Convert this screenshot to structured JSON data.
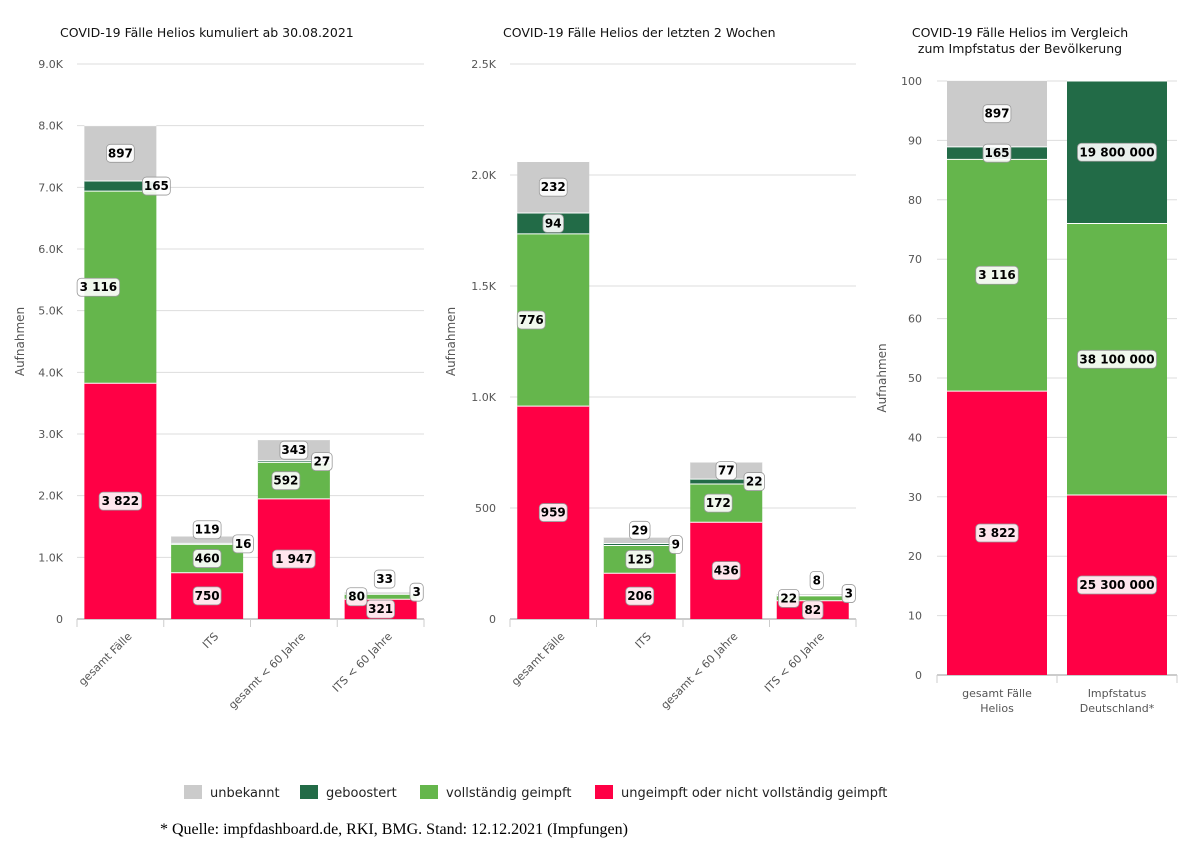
{
  "colors": {
    "unbekannt": "#cbcbcb",
    "geboostert": "#226b47",
    "geimpft": "#65b64c",
    "ungeimpft": "#ff0045"
  },
  "legend": [
    {
      "key": "unbekannt",
      "label": "unbekannt"
    },
    {
      "key": "geboostert",
      "label": "geboostert"
    },
    {
      "key": "geimpft",
      "label": "vollständig geimpft"
    },
    {
      "key": "ungeimpft",
      "label": "ungeimpft oder nicht vollständig geimpft"
    }
  ],
  "source": "* Quelle: impfdashboard.de, RKI, BMG. Stand: 12.12.2021 (Impfungen)",
  "chart_data": [
    {
      "type": "bar",
      "stacked": true,
      "title": "COVID-19 Fälle Helios kumuliert ab 30.08.2021",
      "ylabel": "Aufnahmen",
      "ylim": [
        0,
        9000
      ],
      "yticks": [
        {
          "v": 0,
          "label": "0"
        },
        {
          "v": 1000,
          "label": "1.0K"
        },
        {
          "v": 2000,
          "label": "2.0K"
        },
        {
          "v": 3000,
          "label": "3.0K"
        },
        {
          "v": 4000,
          "label": "4.0K"
        },
        {
          "v": 5000,
          "label": "5.0K"
        },
        {
          "v": 6000,
          "label": "6.0K"
        },
        {
          "v": 7000,
          "label": "7.0K"
        },
        {
          "v": 8000,
          "label": "8.0K"
        },
        {
          "v": 9000,
          "label": "9.0K"
        }
      ],
      "categories": [
        "gesamt Fälle",
        "ITS",
        "gesamt < 60 Jahre",
        "ITS < 60 Jahre"
      ],
      "series": [
        {
          "key": "ungeimpft",
          "name": "ungeimpft oder nicht vollständig geimpft",
          "values": [
            3822,
            750,
            1947,
            321
          ],
          "labels": [
            "3 822",
            "750",
            "1 947",
            "321"
          ]
        },
        {
          "key": "geimpft",
          "name": "vollständig geimpft",
          "values": [
            3116,
            460,
            592,
            80
          ],
          "labels": [
            "3 116",
            "460",
            "592",
            "80"
          ]
        },
        {
          "key": "geboostert",
          "name": "geboostert",
          "values": [
            165,
            16,
            27,
            3
          ],
          "labels": [
            "165",
            "16",
            "27",
            "3"
          ]
        },
        {
          "key": "unbekannt",
          "name": "unbekannt",
          "values": [
            897,
            119,
            343,
            33
          ],
          "labels": [
            "897",
            "119",
            "343",
            "33"
          ]
        }
      ]
    },
    {
      "type": "bar",
      "stacked": true,
      "title": "COVID-19 Fälle Helios der letzten 2 Wochen",
      "ylabel": "Aufnahmen",
      "ylim": [
        0,
        2500
      ],
      "yticks": [
        {
          "v": 0,
          "label": "0"
        },
        {
          "v": 500,
          "label": "500"
        },
        {
          "v": 1000,
          "label": "1.0K"
        },
        {
          "v": 1500,
          "label": "1.5K"
        },
        {
          "v": 2000,
          "label": "2.0K"
        },
        {
          "v": 2500,
          "label": "2.5K"
        }
      ],
      "categories": [
        "gesamt Fälle",
        "ITS",
        "gesamt < 60 Jahre",
        "ITS < 60 Jahre"
      ],
      "series": [
        {
          "key": "ungeimpft",
          "name": "ungeimpft oder nicht vollständig geimpft",
          "values": [
            959,
            206,
            436,
            82
          ],
          "labels": [
            "959",
            "206",
            "436",
            "82"
          ]
        },
        {
          "key": "geimpft",
          "name": "vollständig geimpft",
          "values": [
            776,
            125,
            172,
            22
          ],
          "labels": [
            "776",
            "125",
            "172",
            "22"
          ]
        },
        {
          "key": "geboostert",
          "name": "geboostert",
          "values": [
            94,
            9,
            22,
            3
          ],
          "labels": [
            "94",
            "9",
            "22",
            "3"
          ]
        },
        {
          "key": "unbekannt",
          "name": "unbekannt",
          "values": [
            232,
            29,
            77,
            8
          ],
          "labels": [
            "232",
            "29",
            "77",
            "8"
          ]
        }
      ]
    },
    {
      "type": "bar",
      "stacked": true,
      "percent": true,
      "title": [
        "COVID-19 Fälle Helios im Vergleich",
        "zum Impfstatus der Bevölkerung"
      ],
      "ylabel": "Aufnahmen",
      "ylim": [
        0,
        100
      ],
      "yticks": [
        {
          "v": 0,
          "label": "0"
        },
        {
          "v": 10,
          "label": "10"
        },
        {
          "v": 20,
          "label": "20"
        },
        {
          "v": 30,
          "label": "30"
        },
        {
          "v": 40,
          "label": "40"
        },
        {
          "v": 50,
          "label": "50"
        },
        {
          "v": 60,
          "label": "60"
        },
        {
          "v": 70,
          "label": "70"
        },
        {
          "v": 80,
          "label": "80"
        },
        {
          "v": 90,
          "label": "90"
        },
        {
          "v": 100,
          "label": "100"
        }
      ],
      "categories": [
        [
          "gesamt Fälle",
          "Helios"
        ],
        [
          "Impfstatus",
          "Deutschland*"
        ]
      ],
      "series": [
        {
          "key": "ungeimpft",
          "name": "ungeimpft oder nicht vollständig geimpft",
          "values": [
            47.8,
            30.3
          ],
          "labels": [
            "3 822",
            "25 300 000"
          ]
        },
        {
          "key": "geimpft",
          "name": "vollständig geimpft",
          "values": [
            39.0,
            45.7
          ],
          "labels": [
            "3 116",
            "38 100 000"
          ]
        },
        {
          "key": "geboostert",
          "name": "geboostert",
          "values": [
            2.1,
            24.0
          ],
          "labels": [
            "165",
            "19 800 000"
          ]
        },
        {
          "key": "unbekannt",
          "name": "unbekannt",
          "values": [
            11.2,
            0
          ],
          "labels": [
            "897",
            ""
          ]
        }
      ]
    }
  ]
}
